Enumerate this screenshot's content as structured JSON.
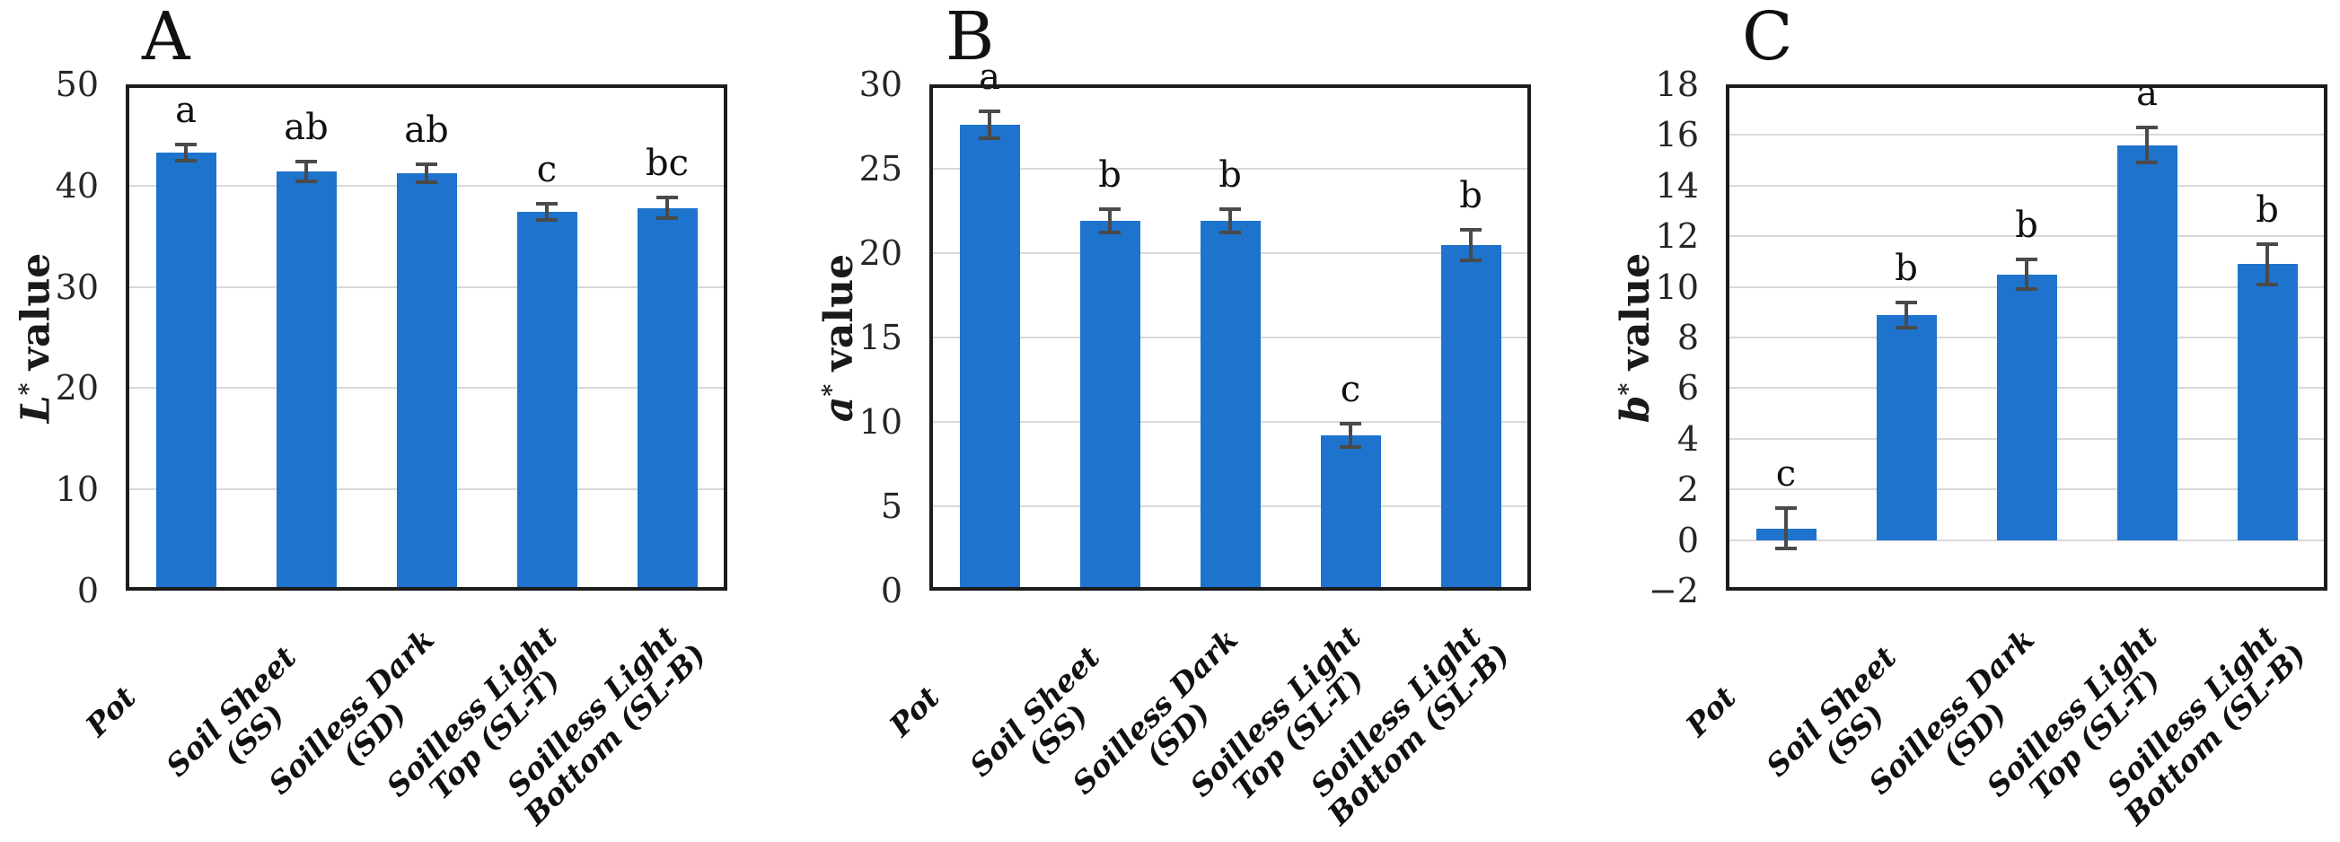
{
  "figure": {
    "background": "#ffffff",
    "description_visible_text_only": true
  },
  "colors": {
    "bar_fill": "#1E73CC",
    "error_bar": "#4a4a4a",
    "gridline": "#d9d9d9",
    "axis_border": "#1c1c1c",
    "text": "#1a1a1a"
  },
  "categories": [
    "Pot",
    "Soil Sheet (SS)",
    "Soilless Dark (SD)",
    "Soilless Light Top (SL-T)",
    "Soilless Light Bottom (SL-B)"
  ],
  "category_label_lines": [
    [
      "Pot"
    ],
    [
      "Soil Sheet",
      "(SS)"
    ],
    [
      "Soilless Dark",
      "(SD)"
    ],
    [
      "Soilless Light",
      "Top (SL-T)"
    ],
    [
      "Soilless Light",
      "Bottom (SL-B)"
    ]
  ],
  "chart_data": [
    {
      "type": "bar",
      "panel_label": "A",
      "ylabel": "L* value",
      "ylabel_var": "L",
      "ylabel_sup": "*",
      "ylabel_rest": "value",
      "ylim": [
        0,
        50
      ],
      "ystep": 10,
      "grid": true,
      "legend": "none",
      "categories": [
        "Pot",
        "Soil Sheet (SS)",
        "Soilless Dark (SD)",
        "Soilless Light Top (SL-T)",
        "Soilless Light Bottom (SL-B)"
      ],
      "values": [
        43.3,
        41.4,
        41.2,
        37.4,
        37.8
      ],
      "errors": [
        0.8,
        1.0,
        0.9,
        0.8,
        1.0
      ],
      "sig_letters": [
        "a",
        "ab",
        "ab",
        "c",
        "bc"
      ]
    },
    {
      "type": "bar",
      "panel_label": "B",
      "ylabel": "a* value",
      "ylabel_var": "a",
      "ylabel_sup": "*",
      "ylabel_rest": "value",
      "ylim": [
        0,
        30
      ],
      "ystep": 5,
      "grid": true,
      "legend": "none",
      "categories": [
        "Pot",
        "Soil Sheet (SS)",
        "Soilless Dark (SD)",
        "Soilless Light Top (SL-T)",
        "Soilless Light Bottom (SL-B)"
      ],
      "values": [
        27.6,
        21.9,
        21.9,
        9.2,
        20.5
      ],
      "errors": [
        0.8,
        0.7,
        0.7,
        0.7,
        0.9
      ],
      "sig_letters": [
        "a",
        "b",
        "b",
        "c",
        "b"
      ]
    },
    {
      "type": "bar",
      "panel_label": "C",
      "ylabel": "b* value",
      "ylabel_var": "b",
      "ylabel_sup": "*",
      "ylabel_rest": "value",
      "ylim": [
        -2,
        18
      ],
      "ystep": 2,
      "grid": true,
      "legend": "none",
      "categories": [
        "Pot",
        "Soil Sheet (SS)",
        "Soilless Dark (SD)",
        "Soilless Light Top (SL-T)",
        "Soilless Light Bottom (SL-B)"
      ],
      "values": [
        0.45,
        8.9,
        10.5,
        15.6,
        10.9
      ],
      "errors": [
        0.8,
        0.5,
        0.6,
        0.7,
        0.8
      ],
      "sig_letters": [
        "c",
        "b",
        "b",
        "a",
        "b"
      ]
    }
  ]
}
